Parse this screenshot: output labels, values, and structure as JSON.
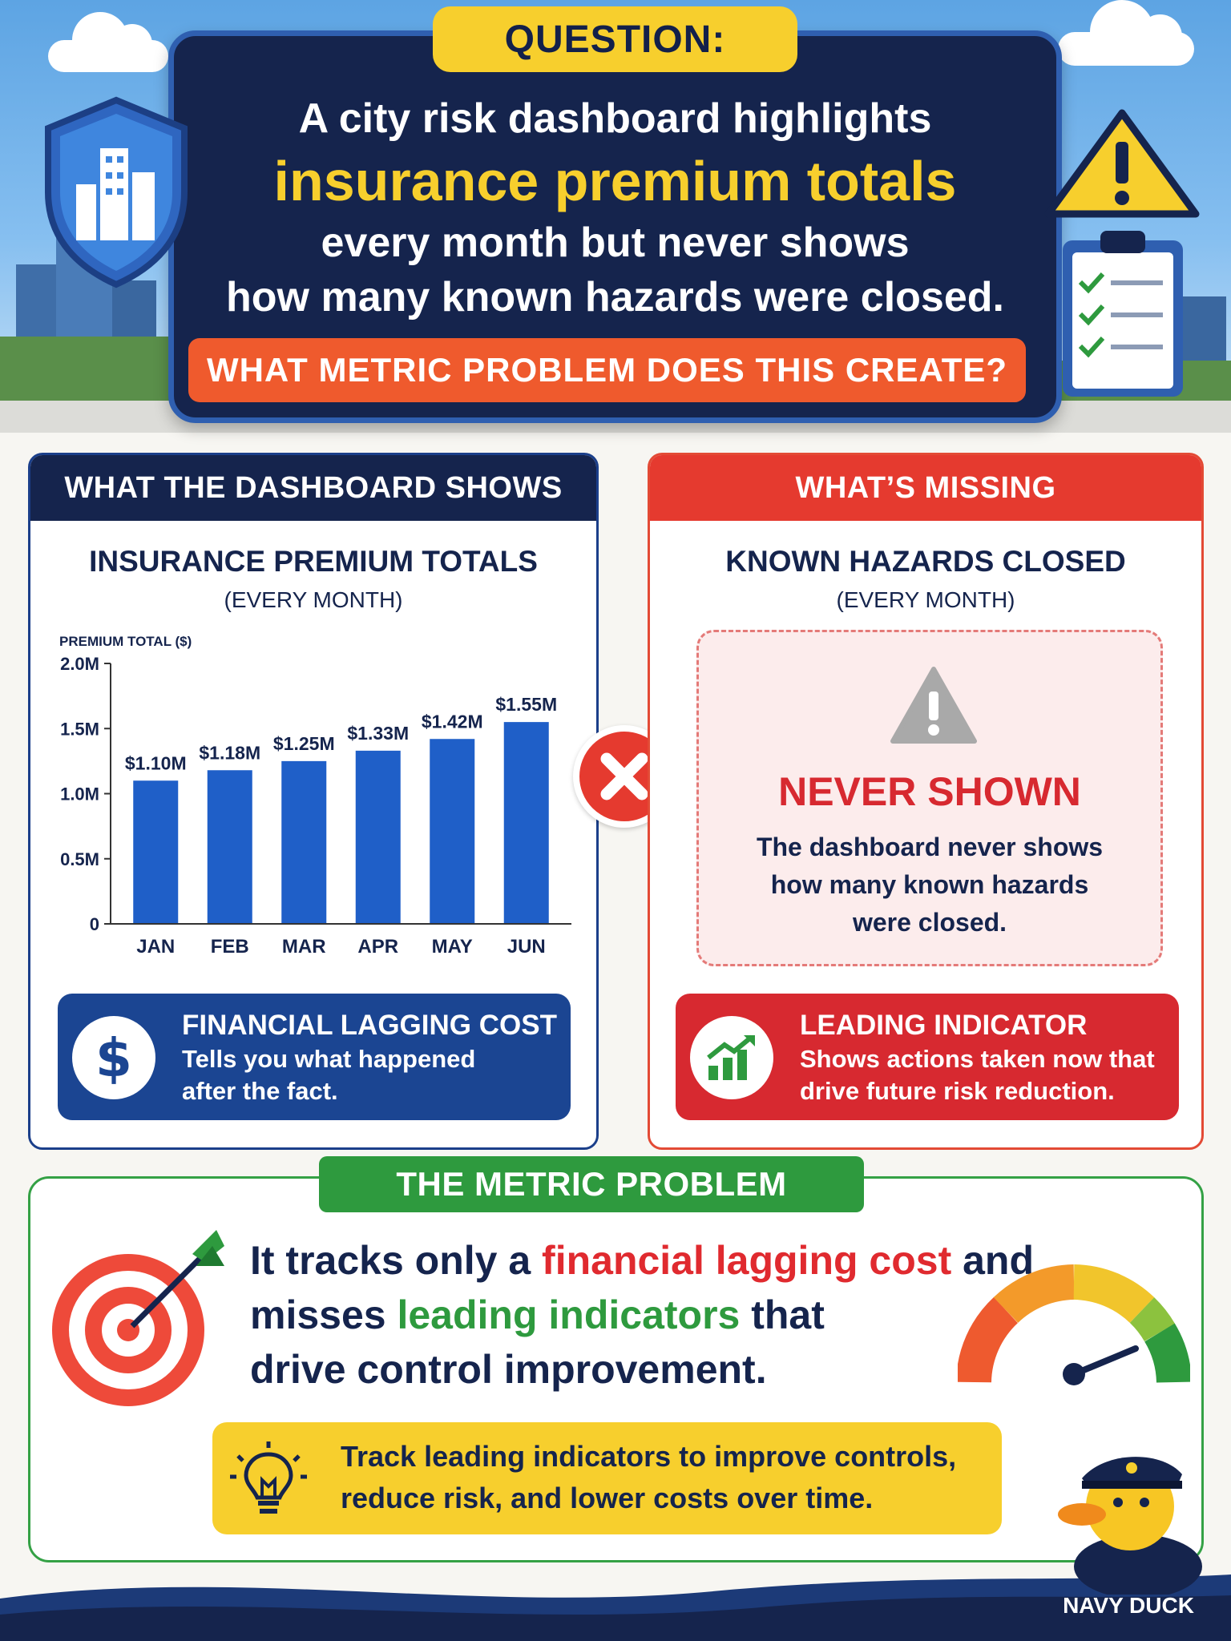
{
  "question": {
    "label": "QUESTION:",
    "line1": "A city risk dashboard highlights",
    "line2": "insurance premium totals",
    "line3": "every month but never shows",
    "line4": "how many known hazards were closed.",
    "cta": "WHAT METRIC PROBLEM DOES THIS CREATE?"
  },
  "dashboard": {
    "header": "WHAT THE DASHBOARD SHOWS",
    "title": "INSURANCE PREMIUM TOTALS",
    "subtitle": "(EVERY MONTH)",
    "callout": {
      "title": "FINANCIAL LAGGING COST",
      "line1": "Tells you what happened",
      "line2": "after the fact."
    }
  },
  "chart_data": {
    "type": "bar",
    "ylabel": "PREMIUM TOTAL ($)",
    "xlabel": "",
    "categories": [
      "JAN",
      "FEB",
      "MAR",
      "APR",
      "MAY",
      "JUN"
    ],
    "values": [
      1.1,
      1.18,
      1.25,
      1.33,
      1.42,
      1.55
    ],
    "data_labels": [
      "$1.10M",
      "$1.18M",
      "$1.25M",
      "$1.33M",
      "$1.42M",
      "$1.55M"
    ],
    "yticks": [
      0,
      0.5,
      1.0,
      1.5,
      2.0
    ],
    "ytick_labels": [
      "0",
      "0.5M",
      "1.0M",
      "1.5M",
      "2.0M"
    ],
    "ylim": [
      0,
      2.0
    ],
    "grid": false,
    "bar_color": "#1f5fc8"
  },
  "missing": {
    "header": "WHAT’S MISSING",
    "title": "KNOWN HAZARDS CLOSED",
    "subtitle": "(EVERY MONTH)",
    "never_shown_title": "NEVER SHOWN",
    "never_shown_line1": "The dashboard never shows",
    "never_shown_line2": "how many known hazards",
    "never_shown_line3": "were closed.",
    "callout": {
      "title": "LEADING INDICATOR",
      "line1": "Shows actions taken now that",
      "line2": "drive future risk reduction."
    }
  },
  "metric_problem": {
    "label": "THE METRIC PROBLEM",
    "l1_a": "It tracks only a ",
    "l1_b": "financial lagging cost",
    "l1_c": " and",
    "l2_a": "misses ",
    "l2_b": "leading indicators",
    "l2_c": " that",
    "l3": "drive control improvement.",
    "tip_line1": "Track leading indicators to improve controls,",
    "tip_line2": "reduce risk, and lower costs over time."
  },
  "brand": "NAVY DUCK",
  "icons": {
    "hero": [
      "shield-city-icon",
      "warning-icon",
      "clipboard-checklist-icon"
    ],
    "cards": [
      "dollar-icon",
      "x-badge-icon",
      "grey-warning-icon",
      "growth-chart-icon"
    ],
    "problem": [
      "target-arrow-icon",
      "gauge-icon",
      "lightbulb-icon",
      "duck-mascot-icon"
    ]
  },
  "colors": {
    "navy": "#15244d",
    "accent_yellow": "#f7cf2d",
    "alert_red": "#e53a2f",
    "green": "#2e9a3e",
    "blue": "#1f5fc8"
  }
}
